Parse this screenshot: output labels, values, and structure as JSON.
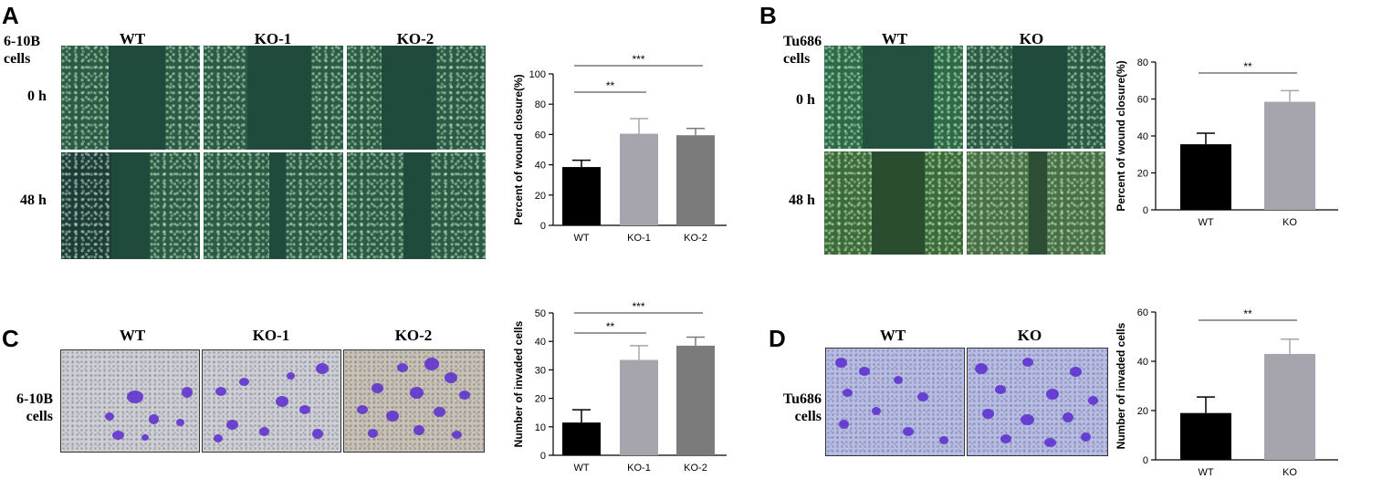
{
  "panels": {
    "A": {
      "letter": "A",
      "cell_line": [
        "6-10B",
        "cells"
      ],
      "columns": [
        "WT",
        "KO-1",
        "KO-2"
      ],
      "rows": [
        "0 h",
        "48 h"
      ]
    },
    "B": {
      "letter": "B",
      "cell_line": [
        "Tu686",
        "cells"
      ],
      "columns": [
        "WT",
        "KO"
      ],
      "rows": [
        "0 h",
        "48 h"
      ]
    },
    "C": {
      "letter": "C",
      "cell_line": [
        "6-10B",
        "cells"
      ],
      "columns": [
        "WT",
        "KO-1",
        "KO-2"
      ]
    },
    "D": {
      "letter": "D",
      "cell_line": [
        "Tu686",
        "cells"
      ],
      "columns": [
        "WT",
        "KO"
      ]
    }
  },
  "chart_data": [
    {
      "id": "A",
      "type": "bar",
      "categories": [
        "WT",
        "KO-1",
        "KO-2"
      ],
      "values": [
        38.5,
        60.5,
        59.5
      ],
      "errors": [
        4.5,
        10,
        4.5
      ],
      "colors": [
        "#000000",
        "#a6a5ae",
        "#7b7b7b"
      ],
      "ylabel": "Percent of wound closure(%)",
      "ylim": [
        0,
        100
      ],
      "yticks": [
        0,
        20,
        40,
        60,
        80,
        100
      ],
      "significance": [
        {
          "from": 0,
          "to": 1,
          "label": "**"
        },
        {
          "from": 0,
          "to": 2,
          "label": "***"
        }
      ]
    },
    {
      "id": "B",
      "type": "bar",
      "categories": [
        "WT",
        "KO"
      ],
      "values": [
        35.5,
        58.5
      ],
      "errors": [
        6,
        6
      ],
      "colors": [
        "#000000",
        "#a6a5ae"
      ],
      "ylabel": "Percent of wound closure(%)",
      "ylim": [
        0,
        80
      ],
      "yticks": [
        0,
        20,
        40,
        60,
        80
      ],
      "significance": [
        {
          "from": 0,
          "to": 1,
          "label": "**"
        }
      ]
    },
    {
      "id": "C",
      "type": "bar",
      "categories": [
        "WT",
        "KO-1",
        "KO-2"
      ],
      "values": [
        11.5,
        33.5,
        38.5
      ],
      "errors": [
        4.5,
        5,
        3
      ],
      "colors": [
        "#000000",
        "#a6a5ae",
        "#7b7b7b"
      ],
      "ylabel": "Number of invaded cells",
      "ylim": [
        0,
        50
      ],
      "yticks": [
        0,
        10,
        20,
        30,
        40,
        50
      ],
      "significance": [
        {
          "from": 0,
          "to": 1,
          "label": "**"
        },
        {
          "from": 0,
          "to": 2,
          "label": "***"
        }
      ]
    },
    {
      "id": "D",
      "type": "bar",
      "categories": [
        "WT",
        "KO"
      ],
      "values": [
        19,
        43
      ],
      "errors": [
        6.5,
        6
      ],
      "colors": [
        "#000000",
        "#a6a5ae"
      ],
      "ylabel": "Number of invaded cells",
      "ylim": [
        0,
        60
      ],
      "yticks": [
        0,
        20,
        40,
        60
      ],
      "significance": [
        {
          "from": 0,
          "to": 1,
          "label": "**"
        }
      ]
    }
  ]
}
